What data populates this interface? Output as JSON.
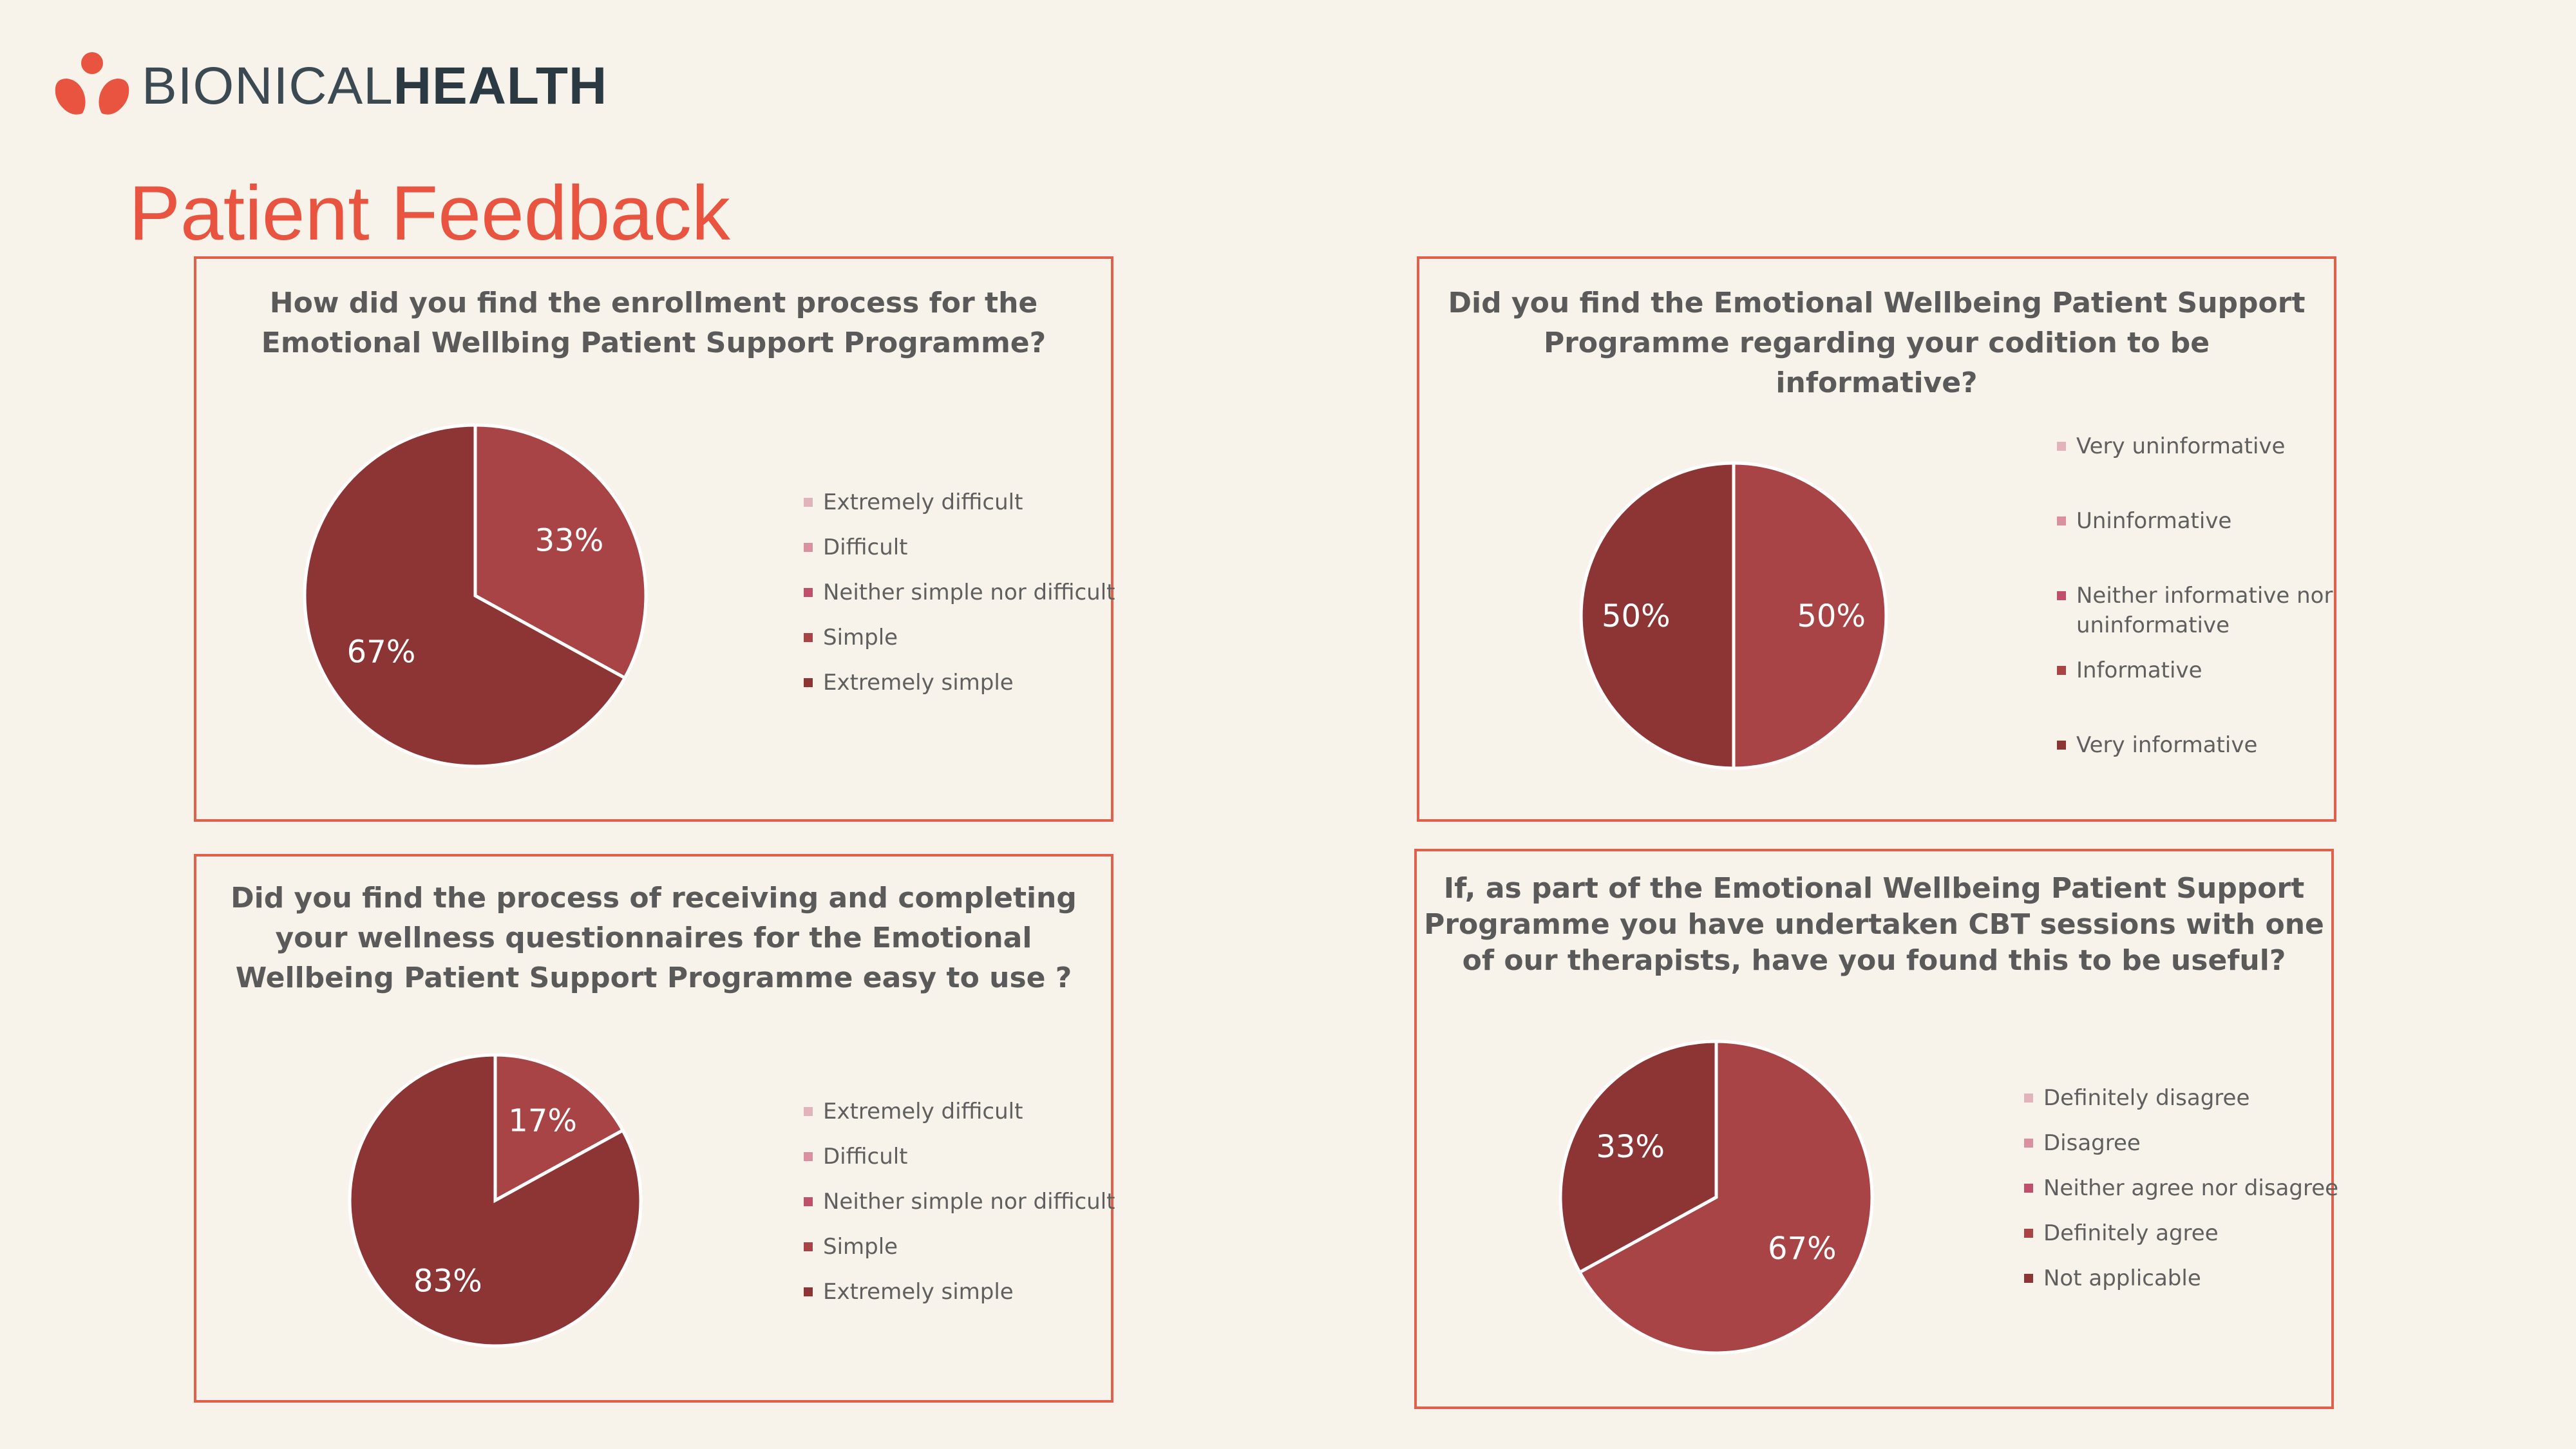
{
  "brand": {
    "name_light": "BIONICAL",
    "name_bold": "HEALTH"
  },
  "page_title": "Patient Feedback",
  "chart_data": [
    {
      "type": "pie",
      "title": "How did you find the enrollment process for the Emotional Wellbing Patient Support Programme?",
      "title_lines": [
        "How did you find the enrollment process for the",
        "Emotional Wellbing Patient Support Programme?"
      ],
      "categories": [
        "Extremely difficult",
        "Difficult",
        "Neither simple nor difficult",
        "Simple",
        "Extremely simple"
      ],
      "values": [
        0,
        0,
        0,
        33,
        67
      ],
      "labels": [
        "",
        "",
        "",
        "33%",
        "67%"
      ],
      "colors": [
        "#e3b3bc",
        "#d8919d",
        "#c0506a",
        "#a84446",
        "#8d3535"
      ],
      "legend_position": "right"
    },
    {
      "type": "pie",
      "title": "Did you find the Emotional Wellbeing Patient Support Programme regarding your codition to be informative?",
      "title_lines": [
        "Did you find the Emotional Wellbeing Patient Support",
        "Programme regarding your codition to be",
        "informative?"
      ],
      "categories": [
        "Very uninformative",
        "Uninformative",
        "Neither informative nor uninformative",
        "Informative",
        "Very informative"
      ],
      "values": [
        0,
        0,
        0,
        50,
        50
      ],
      "labels": [
        "",
        "",
        "",
        "50%",
        "50%"
      ],
      "colors": [
        "#e3b3bc",
        "#d8919d",
        "#c0506a",
        "#a84446",
        "#8d3535"
      ],
      "legend_position": "right"
    },
    {
      "type": "pie",
      "title": "Did you find the process of receiving and completing your wellness questionnaires for the Emotional Wellbeing Patient Support Programme easy to use ?",
      "title_lines": [
        "Did you find the process of receiving and completing",
        "your wellness questionnaires for the Emotional",
        "Wellbeing Patient Support Programme easy to use ?"
      ],
      "categories": [
        "Extremely difficult",
        "Difficult",
        "Neither simple nor difficult",
        "Simple",
        "Extremely simple"
      ],
      "values": [
        0,
        0,
        0,
        17,
        83
      ],
      "labels": [
        "",
        "",
        "",
        "17%",
        "83%"
      ],
      "colors": [
        "#e3b3bc",
        "#d8919d",
        "#c0506a",
        "#a84446",
        "#8d3535"
      ],
      "legend_position": "right"
    },
    {
      "type": "pie",
      "title": "If, as part of the Emotional Wellbeing Patient Support Programme you have undertaken CBT sessions with one of our therapists, have you found this to be useful?",
      "title_lines": [
        "If, as part of the  Emotional Wellbeing Patient Support",
        "Programme you have undertaken CBT sessions with one",
        "of our therapists, have you found this to be useful?"
      ],
      "categories": [
        "Definitely disagree",
        "Disagree",
        "Neither agree nor disagree",
        "Definitely agree",
        "Not applicable"
      ],
      "values": [
        0,
        0,
        0,
        67,
        33
      ],
      "labels": [
        "",
        "",
        "",
        "67%",
        "33%"
      ],
      "colors": [
        "#e3b3bc",
        "#d8919d",
        "#c0506a",
        "#a84446",
        "#8d3535"
      ],
      "legend_position": "right"
    }
  ]
}
